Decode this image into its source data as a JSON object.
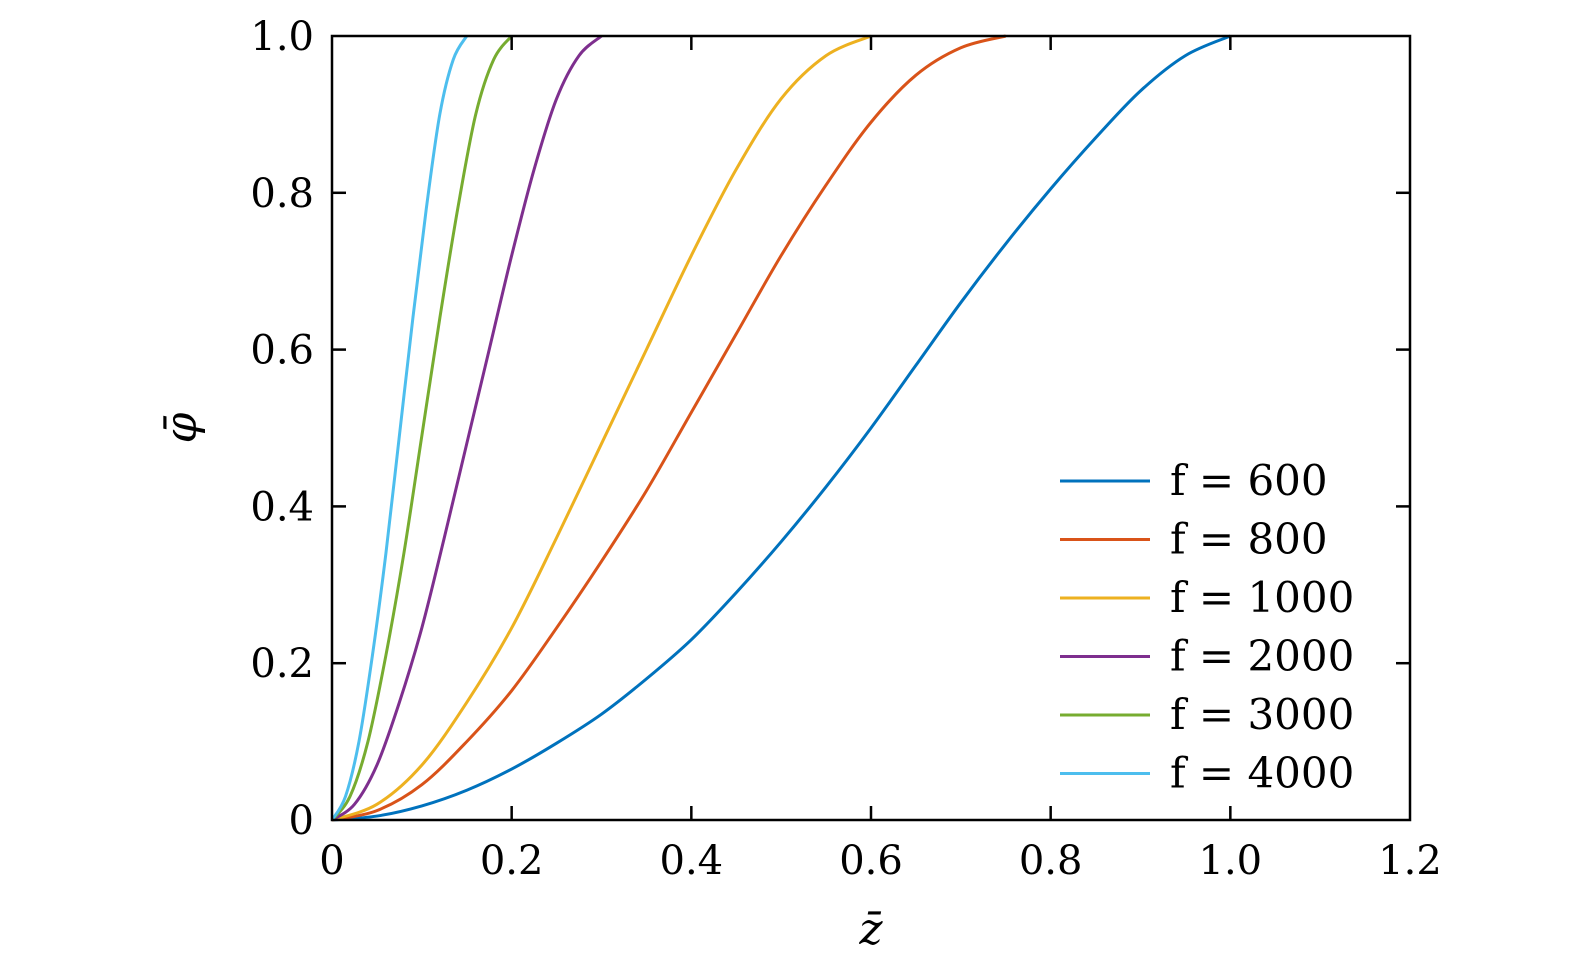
{
  "chart_data": {
    "type": "line",
    "xlabel": "z̄",
    "ylabel": "φ̄",
    "xlim": [
      0,
      1.2
    ],
    "ylim": [
      0,
      1.0
    ],
    "xticks": [
      "0",
      "0.2",
      "0.4",
      "0.6",
      "0.8",
      "1.0",
      "1.2"
    ],
    "yticks": [
      "0",
      "0.2",
      "0.4",
      "0.6",
      "0.8",
      "1.0"
    ],
    "grid": false,
    "legend_position": "bottom-right",
    "series": [
      {
        "name": "f = 600",
        "color": "#0072BD",
        "x": [
          0,
          0.05,
          0.1,
          0.15,
          0.2,
          0.25,
          0.3,
          0.35,
          0.4,
          0.45,
          0.5,
          0.55,
          0.6,
          0.65,
          0.7,
          0.75,
          0.8,
          0.85,
          0.9,
          0.95,
          1.0
        ],
        "y": [
          0,
          0.005,
          0.018,
          0.038,
          0.065,
          0.098,
          0.135,
          0.18,
          0.23,
          0.29,
          0.355,
          0.425,
          0.5,
          0.58,
          0.66,
          0.735,
          0.805,
          0.87,
          0.93,
          0.975,
          1.0
        ]
      },
      {
        "name": "f = 800",
        "color": "#D95319",
        "x": [
          0,
          0.05,
          0.1,
          0.15,
          0.2,
          0.25,
          0.3,
          0.35,
          0.4,
          0.45,
          0.5,
          0.55,
          0.6,
          0.65,
          0.7,
          0.75
        ],
        "y": [
          0,
          0.012,
          0.045,
          0.1,
          0.165,
          0.245,
          0.33,
          0.42,
          0.52,
          0.62,
          0.72,
          0.81,
          0.89,
          0.95,
          0.985,
          1.0
        ]
      },
      {
        "name": "f = 1000",
        "color": "#EDB120",
        "x": [
          0,
          0.05,
          0.1,
          0.15,
          0.2,
          0.25,
          0.3,
          0.35,
          0.4,
          0.45,
          0.5,
          0.55,
          0.6
        ],
        "y": [
          0,
          0.02,
          0.07,
          0.15,
          0.245,
          0.36,
          0.48,
          0.6,
          0.72,
          0.83,
          0.92,
          0.975,
          1.0
        ]
      },
      {
        "name": "f = 2000",
        "color": "#7E2F8E",
        "x": [
          0,
          0.025,
          0.05,
          0.075,
          0.1,
          0.125,
          0.15,
          0.175,
          0.2,
          0.225,
          0.25,
          0.275,
          0.3
        ],
        "y": [
          0,
          0.02,
          0.07,
          0.15,
          0.245,
          0.36,
          0.48,
          0.6,
          0.72,
          0.83,
          0.92,
          0.975,
          1.0
        ]
      },
      {
        "name": "f = 3000",
        "color": "#77AC30",
        "x": [
          0,
          0.02,
          0.04,
          0.06,
          0.08,
          0.1,
          0.12,
          0.14,
          0.16,
          0.18,
          0.2
        ],
        "y": [
          0,
          0.03,
          0.1,
          0.21,
          0.34,
          0.49,
          0.64,
          0.78,
          0.9,
          0.97,
          1.0
        ]
      },
      {
        "name": "f = 4000",
        "color": "#4DBEEE",
        "x": [
          0,
          0.015,
          0.03,
          0.045,
          0.06,
          0.075,
          0.09,
          0.105,
          0.12,
          0.135,
          0.15
        ],
        "y": [
          0,
          0.03,
          0.1,
          0.21,
          0.34,
          0.49,
          0.64,
          0.78,
          0.9,
          0.97,
          1.0
        ]
      }
    ]
  }
}
